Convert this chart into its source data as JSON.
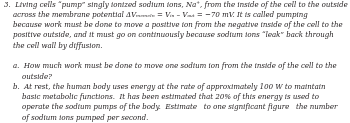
{
  "background_color": "#ffffff",
  "text_color": "#231f20",
  "figsize": [
    3.5,
    1.23
  ],
  "dpi": 100,
  "fontsize": 5.05,
  "linespacing": 1.38,
  "font_family": "serif",
  "font_style": "italic",
  "paragraph1": [
    "3.  Living cells “pump” singly ionized sodium ions, Na⁺, from the inside of the cell to the outside",
    "    across the membrane potential ΔVₘₑₘₑₗₙ = Vᵢₙ – Vₒᵤₜ = −70 mV. It is called pumping",
    "    because work must be done to move a positive ion from the negative inside of the cell to the",
    "    positive outside, and it must go on continuously because sodium ions “leak” back through",
    "    the cell wall by diffusion."
  ],
  "paragraph2": [
    "    a.  How much work must be done to move one sodium ion from the inside of the cell to the",
    "        outside?"
  ],
  "paragraph3": [
    "    b.  At rest, the human body uses energy at the rate of approximately 100 W to maintain",
    "        basic metabolic functions.  It has been estimated that 20% of this energy is used to",
    "        operate the sodium pumps of the body.  Estimate   to one significant figure   the number",
    "        of sodium ions pumped per second."
  ]
}
